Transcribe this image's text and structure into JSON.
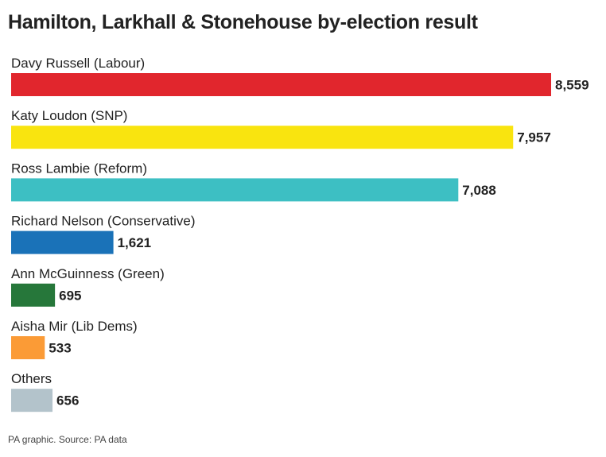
{
  "chart_data": {
    "type": "bar",
    "orientation": "horizontal",
    "title": "Hamilton, Larkhall & Stonehouse by-election result",
    "categories": [
      "Davy Russell (Labour)",
      "Katy Loudon (SNP)",
      "Ross Lambie (Reform)",
      "Richard Nelson (Conservative)",
      "Ann McGuinness (Green)",
      "Aisha Mir (Lib Dems)",
      "Others"
    ],
    "values": [
      8559,
      7957,
      7088,
      1621,
      695,
      533,
      656
    ],
    "value_labels": [
      "8,559",
      "7,957",
      "7,088",
      "1,621",
      "695",
      "533",
      "656"
    ],
    "colors": [
      "#e1262d",
      "#f9e40f",
      "#3dbfc3",
      "#1a72b8",
      "#26773a",
      "#fb9b36",
      "#b3c3cb"
    ],
    "xlim": [
      0,
      8559
    ],
    "grid": false,
    "xlabel": "",
    "ylabel": ""
  },
  "source": "PA graphic. Source: PA data"
}
